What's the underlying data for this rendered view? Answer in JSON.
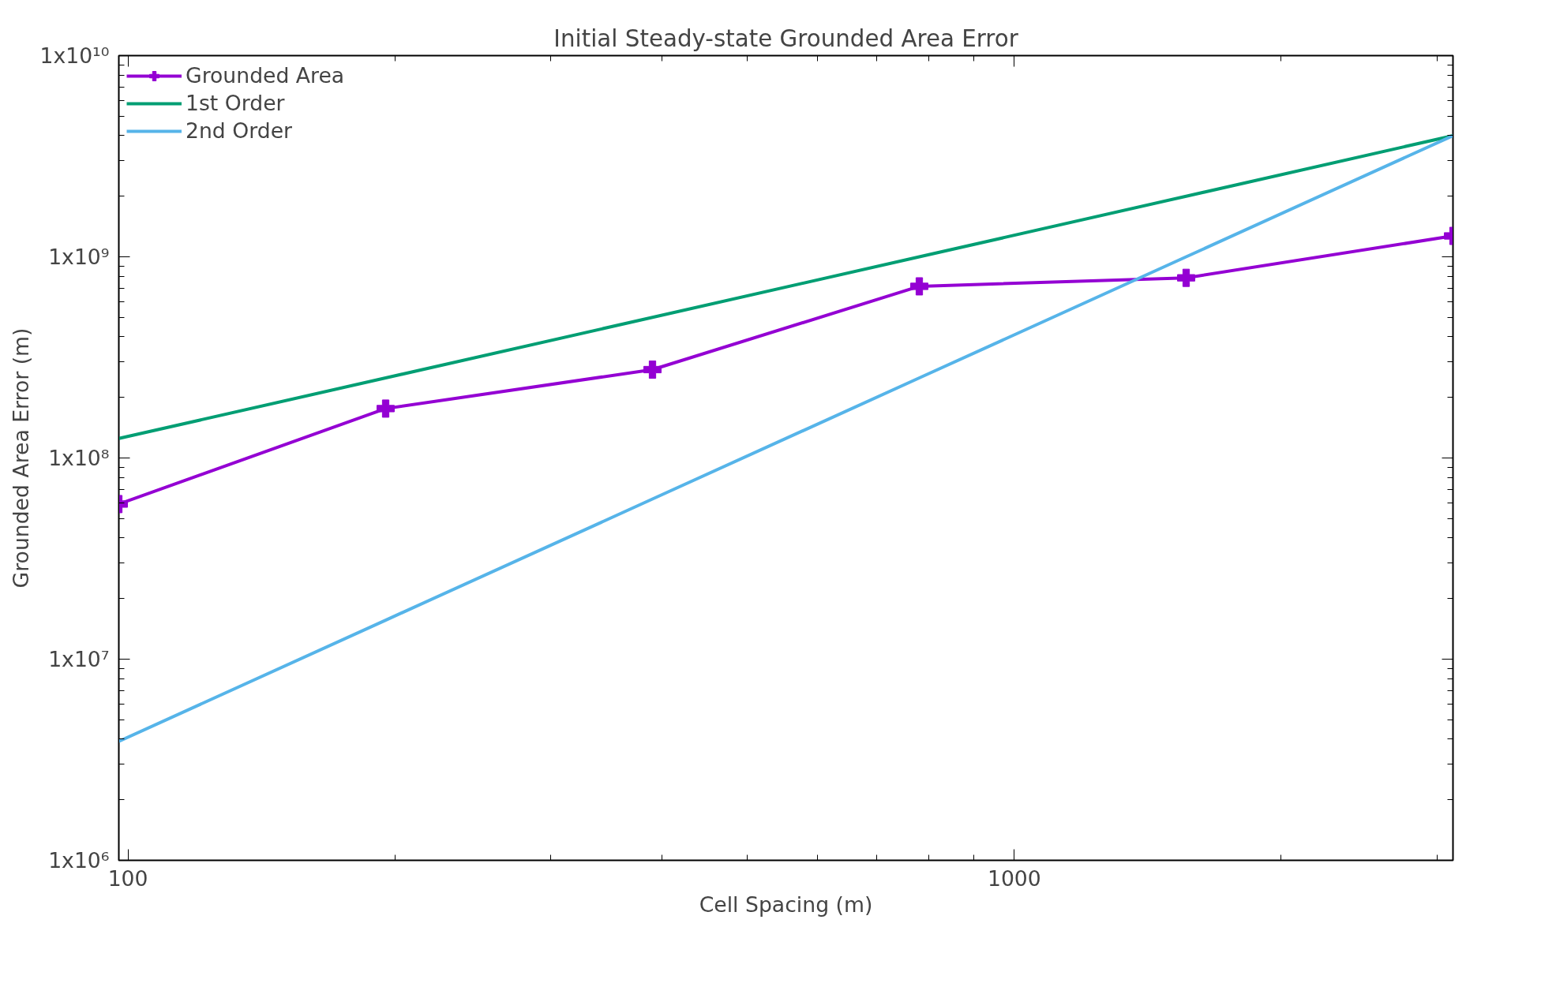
{
  "chart_data": {
    "type": "line",
    "title": "Initial Steady-state Grounded Area Error",
    "xlabel": "Cell Spacing (m)",
    "ylabel": "Grounded Area Error (m)",
    "log": "xy",
    "grid": false,
    "legend": "top left",
    "x": [
      97.65625,
      195.3125,
      390.625,
      781.25,
      1562.5,
      3125
    ],
    "xlim": [
      97.65625,
      3125
    ],
    "ylim": [
      1000000,
      10000000000
    ],
    "xticks": [
      100,
      {
        "value": 200,
        "label": null
      },
      {
        "value": 300,
        "label": null
      },
      {
        "value": 400,
        "label": null
      },
      {
        "value": 500,
        "label": null
      },
      {
        "value": 600,
        "label": null
      },
      {
        "value": 700,
        "label": null
      },
      {
        "value": 800,
        "label": null
      },
      {
        "value": 900,
        "label": null
      },
      1000,
      {
        "value": 2000,
        "label": null
      },
      {
        "value": 3000,
        "label": null
      }
    ],
    "yticks": [
      {
        "value": 1000000,
        "label": "1x10⁶"
      },
      {
        "value": 2000000,
        "label": null
      },
      {
        "value": 3000000,
        "label": null
      },
      {
        "value": 4000000,
        "label": null
      },
      {
        "value": 5000000,
        "label": null
      },
      {
        "value": 6000000,
        "label": null
      },
      {
        "value": 7000000,
        "label": null
      },
      {
        "value": 8000000,
        "label": null
      },
      {
        "value": 9000000,
        "label": null
      },
      {
        "value": 10000000,
        "label": "1x10⁷"
      },
      {
        "value": 20000000,
        "label": null
      },
      {
        "value": 30000000,
        "label": null
      },
      {
        "value": 40000000,
        "label": null
      },
      {
        "value": 50000000,
        "label": null
      },
      {
        "value": 60000000,
        "label": null
      },
      {
        "value": 70000000,
        "label": null
      },
      {
        "value": 80000000,
        "label": null
      },
      {
        "value": 90000000,
        "label": null
      },
      {
        "value": 100000000,
        "label": "1x10⁸"
      },
      {
        "value": 200000000,
        "label": null
      },
      {
        "value": 300000000,
        "label": null
      },
      {
        "value": 400000000,
        "label": null
      },
      {
        "value": 500000000,
        "label": null
      },
      {
        "value": 600000000,
        "label": null
      },
      {
        "value": 700000000,
        "label": null
      },
      {
        "value": 800000000,
        "label": null
      },
      {
        "value": 900000000,
        "label": null
      },
      {
        "value": 1000000000,
        "label": "1x10⁹"
      },
      {
        "value": 2000000000,
        "label": null
      },
      {
        "value": 3000000000,
        "label": null
      },
      {
        "value": 4000000000,
        "label": null
      },
      {
        "value": 5000000000,
        "label": null
      },
      {
        "value": 6000000000,
        "label": null
      },
      {
        "value": 7000000000,
        "label": null
      },
      {
        "value": 8000000000,
        "label": null
      },
      {
        "value": 9000000000,
        "label": null
      },
      {
        "value": 10000000000,
        "label": "1x10¹⁰"
      }
    ],
    "series": [
      {
        "name": "Grounded Area",
        "color": "#9400d3",
        "marker": "cross",
        "values": [
          59000000,
          176000000,
          275000000,
          713000000,
          786000000,
          1270000000
        ]
      },
      {
        "name": "1st Order",
        "color": "#009e73",
        "marker": "none",
        "values": [
          125000000,
          250000000,
          500000000,
          1000000000,
          2000000000,
          4000000000
        ]
      },
      {
        "name": "2nd Order",
        "color": "#56b4e9",
        "marker": "none",
        "values": [
          3906250,
          15625000,
          62500000,
          250000000,
          1000000000,
          4000000000
        ]
      }
    ]
  }
}
